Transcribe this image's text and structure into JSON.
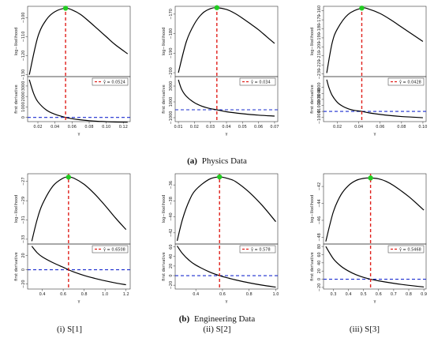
{
  "captions": {
    "physics": {
      "label": "(a)",
      "text": "Physics Data"
    },
    "engineering": {
      "label": "(b)",
      "text": "Engineering Data"
    },
    "columns": [
      "(i) S[1]",
      "(ii) S[2]",
      "(iii) S[3]"
    ]
  },
  "colors": {
    "curve": "#000000",
    "estimate_line": "#e0201b",
    "zero_line": "#1b2ccf",
    "peak_marker": "#22cc22"
  },
  "chart_data": [
    {
      "type": "line",
      "group": "physics",
      "estimate": 0.0524,
      "legend_label": "γ̂ = 0.0524",
      "xlabel": "γ",
      "x_ticks": [
        "0.02",
        "0.04",
        "0.06",
        "0.08",
        "0.10",
        "0.12"
      ],
      "x_tick_values": [
        0.02,
        0.04,
        0.06,
        0.08,
        0.1,
        0.12
      ],
      "xlim": [
        0.008,
        0.128
      ],
      "top": {
        "ylabel": "log−likelihood",
        "y_ticks": [
          "−130",
          "−120",
          "−110",
          "−100"
        ],
        "y_tick_values": [
          -130,
          -120,
          -110,
          -100
        ],
        "ylim": [
          -131,
          -94
        ],
        "x": [
          0.01,
          0.02,
          0.03,
          0.04,
          0.0524,
          0.06,
          0.07,
          0.08,
          0.09,
          0.1,
          0.11,
          0.125
        ],
        "y": [
          -130,
          -110,
          -101,
          -96.8,
          -95.0,
          -95.9,
          -98.3,
          -102,
          -106,
          -110,
          -114,
          -119
        ]
      },
      "bottom": {
        "ylabel": "first derivative",
        "y_ticks": [
          "0",
          "1000",
          "2000",
          "3000"
        ],
        "y_tick_values": [
          0,
          1000,
          2000,
          3000
        ],
        "ylim": [
          -400,
          3900
        ],
        "x": [
          0.01,
          0.015,
          0.02,
          0.03,
          0.04,
          0.0524,
          0.06,
          0.07,
          0.08,
          0.09,
          0.1,
          0.11,
          0.125
        ],
        "y": [
          3600,
          2300,
          1500,
          700,
          300,
          0,
          -120,
          -230,
          -310,
          -370,
          -410,
          -440,
          -460
        ]
      }
    },
    {
      "type": "line",
      "group": "physics",
      "estimate": 0.034,
      "legend_label": "γ̂ = 0.034",
      "xlabel": "γ",
      "x_ticks": [
        "0.01",
        "0.02",
        "0.03",
        "0.04",
        "0.05",
        "0.06",
        "0.07"
      ],
      "x_tick_values": [
        0.01,
        0.02,
        0.03,
        0.04,
        0.05,
        0.06,
        0.07
      ],
      "xlim": [
        0.008,
        0.072
      ],
      "top": {
        "ylabel": "log−likelihood",
        "y_ticks": [
          "−200",
          "−190",
          "−180",
          "−170"
        ],
        "y_tick_values": [
          -200,
          -190,
          -180,
          -170
        ],
        "ylim": [
          -202,
          -166
        ],
        "x": [
          0.01,
          0.015,
          0.02,
          0.025,
          0.03,
          0.034,
          0.04,
          0.045,
          0.05,
          0.055,
          0.06,
          0.065,
          0.07
        ],
        "y": [
          -200,
          -184,
          -175,
          -169.6,
          -167.2,
          -166.7,
          -167.6,
          -169.5,
          -172.1,
          -175,
          -178,
          -181.5,
          -185
        ]
      },
      "bottom": {
        "ylabel": "first derivative",
        "y_ticks": [
          "−1000",
          "1000",
          "3000"
        ],
        "y_tick_values": [
          -1000,
          1000,
          3000
        ],
        "ylim": [
          -1500,
          4200
        ],
        "x": [
          0.01,
          0.012,
          0.015,
          0.02,
          0.025,
          0.03,
          0.034,
          0.04,
          0.05,
          0.06,
          0.07
        ],
        "y": [
          3800,
          2600,
          1700,
          900,
          430,
          140,
          0,
          -250,
          -500,
          -680,
          -800
        ]
      }
    },
    {
      "type": "line",
      "group": "physics",
      "estimate": 0.0428,
      "legend_label": "γ̂ = 0.0428",
      "xlabel": "γ",
      "x_ticks": [
        "0.02",
        "0.04",
        "0.06",
        "0.08",
        "0.10"
      ],
      "x_tick_values": [
        0.02,
        0.04,
        0.06,
        0.08,
        0.1
      ],
      "xlim": [
        0.007,
        0.103
      ],
      "top": {
        "ylabel": "log−likelihood",
        "y_ticks": [
          "−230",
          "−220",
          "−210",
          "−200",
          "−190",
          "−180",
          "−170",
          "−160"
        ],
        "y_tick_values": [
          -230,
          -220,
          -210,
          -200,
          -190,
          -180,
          -170,
          -160
        ],
        "ylim": [
          -233,
          -155
        ],
        "x": [
          0.01,
          0.015,
          0.02,
          0.03,
          0.0428,
          0.05,
          0.06,
          0.07,
          0.08,
          0.09,
          0.1
        ],
        "y": [
          -229,
          -196,
          -180,
          -164,
          -157,
          -158.3,
          -163,
          -170,
          -178,
          -186,
          -194
        ]
      },
      "bottom": {
        "ylabel": "first derivative",
        "y_ticks": [
          "−1000",
          "0",
          "1000",
          "2000",
          "3000",
          "4000"
        ],
        "y_tick_values": [
          -1000,
          0,
          1000,
          2000,
          3000,
          4000
        ],
        "ylim": [
          -1700,
          5800
        ],
        "x": [
          0.01,
          0.012,
          0.015,
          0.02,
          0.025,
          0.03,
          0.035,
          0.0428,
          0.05,
          0.06,
          0.07,
          0.08,
          0.09,
          0.1
        ],
        "y": [
          5300,
          4000,
          2700,
          1500,
          850,
          450,
          200,
          0,
          -250,
          -500,
          -700,
          -850,
          -950,
          -1050
        ]
      }
    },
    {
      "type": "line",
      "group": "engineering",
      "estimate": 0.6508,
      "legend_label": "γ̂ = 0.6508",
      "xlabel": "γ",
      "x_ticks": [
        "0.4",
        "0.6",
        "0.8",
        "1.0",
        "1.2"
      ],
      "x_tick_values": [
        0.4,
        0.6,
        0.8,
        1.0,
        1.2
      ],
      "xlim": [
        0.26,
        1.24
      ],
      "top": {
        "ylabel": "log−likelihood",
        "y_ticks": [
          "−33",
          "−31",
          "−29",
          "−27"
        ],
        "y_tick_values": [
          -33,
          -31,
          -29,
          -27
        ],
        "ylim": [
          -33.5,
          -26.2
        ],
        "x": [
          0.3,
          0.35,
          0.4,
          0.5,
          0.6,
          0.6508,
          0.7,
          0.8,
          0.9,
          1.0,
          1.1,
          1.2
        ],
        "y": [
          -33.2,
          -31.0,
          -29.4,
          -27.5,
          -26.65,
          -26.55,
          -26.65,
          -27.3,
          -28.3,
          -29.5,
          -30.8,
          -32.0
        ]
      },
      "bottom": {
        "ylabel": "first derivative",
        "y_ticks": [
          "−20",
          "0",
          "20"
        ],
        "y_tick_values": [
          -20,
          0,
          20
        ],
        "ylim": [
          -27,
          36
        ],
        "x": [
          0.3,
          0.35,
          0.4,
          0.5,
          0.6,
          0.6508,
          0.7,
          0.8,
          0.9,
          1.0,
          1.1,
          1.2
        ],
        "y": [
          33,
          24,
          18,
          10,
          3.5,
          0,
          -3,
          -8,
          -12,
          -15.5,
          -18.5,
          -21
        ]
      }
    },
    {
      "type": "line",
      "group": "engineering",
      "estimate": 0.578,
      "legend_label": "γ̂ = 0.578",
      "xlabel": "γ",
      "x_ticks": [
        "0.4",
        "0.6",
        "0.8",
        "1.0"
      ],
      "x_tick_values": [
        0.4,
        0.6,
        0.8,
        1.0
      ],
      "xlim": [
        0.245,
        1.015
      ],
      "top": {
        "ylabel": "log−likelihood",
        "y_ticks": [
          "−42",
          "−40",
          "−38",
          "−36"
        ],
        "y_tick_values": [
          -42,
          -40,
          -38,
          -36
        ],
        "ylim": [
          -43.4,
          -34.6
        ],
        "x": [
          0.26,
          0.3,
          0.35,
          0.4,
          0.5,
          0.578,
          0.65,
          0.7,
          0.8,
          0.9,
          1.0
        ],
        "y": [
          -43.0,
          -40.3,
          -38.0,
          -36.6,
          -35.3,
          -35.0,
          -35.25,
          -35.6,
          -36.9,
          -38.6,
          -40.6
        ]
      },
      "bottom": {
        "ylabel": "first derivative",
        "y_ticks": [
          "−20",
          "0",
          "20",
          "40",
          "60"
        ],
        "y_tick_values": [
          -20,
          0,
          20,
          40,
          60
        ],
        "ylim": [
          -28,
          66
        ],
        "x": [
          0.26,
          0.3,
          0.35,
          0.4,
          0.5,
          0.578,
          0.65,
          0.7,
          0.8,
          0.9,
          1.0
        ],
        "y": [
          62,
          46,
          32,
          22,
          8,
          0,
          -5.5,
          -9,
          -15,
          -20,
          -24
        ]
      }
    },
    {
      "type": "line",
      "group": "engineering",
      "estimate": 0.5468,
      "legend_label": "γ̂ = 0.5468",
      "xlabel": "γ",
      "x_ticks": [
        "0.3",
        "0.4",
        "0.5",
        "0.6",
        "0.7",
        "0.8",
        "0.9"
      ],
      "x_tick_values": [
        0.3,
        0.4,
        0.5,
        0.6,
        0.7,
        0.8,
        0.9
      ],
      "xlim": [
        0.235,
        0.915
      ],
      "top": {
        "ylabel": "log−likelihood",
        "y_ticks": [
          "−48",
          "−46",
          "−44",
          "−42"
        ],
        "y_tick_values": [
          -48,
          -46,
          -44,
          -42
        ],
        "ylim": [
          -48.8,
          -40.5
        ],
        "x": [
          0.25,
          0.3,
          0.35,
          0.4,
          0.45,
          0.5,
          0.5468,
          0.6,
          0.65,
          0.7,
          0.8,
          0.9
        ],
        "y": [
          -48.5,
          -45.0,
          -43.0,
          -41.9,
          -41.3,
          -41.05,
          -41.0,
          -41.1,
          -41.4,
          -41.9,
          -43.2,
          -44.8
        ]
      },
      "bottom": {
        "ylabel": "first derivative",
        "y_ticks": [
          "−20",
          "0",
          "20",
          "40",
          "60",
          "80"
        ],
        "y_tick_values": [
          -20,
          0,
          20,
          40,
          60,
          80
        ],
        "ylim": [
          -24,
          86
        ],
        "x": [
          0.25,
          0.3,
          0.35,
          0.4,
          0.45,
          0.5,
          0.5468,
          0.6,
          0.7,
          0.8,
          0.9
        ],
        "y": [
          80,
          50,
          32,
          20,
          11,
          4.5,
          0,
          -4,
          -10,
          -15,
          -19
        ]
      }
    }
  ]
}
